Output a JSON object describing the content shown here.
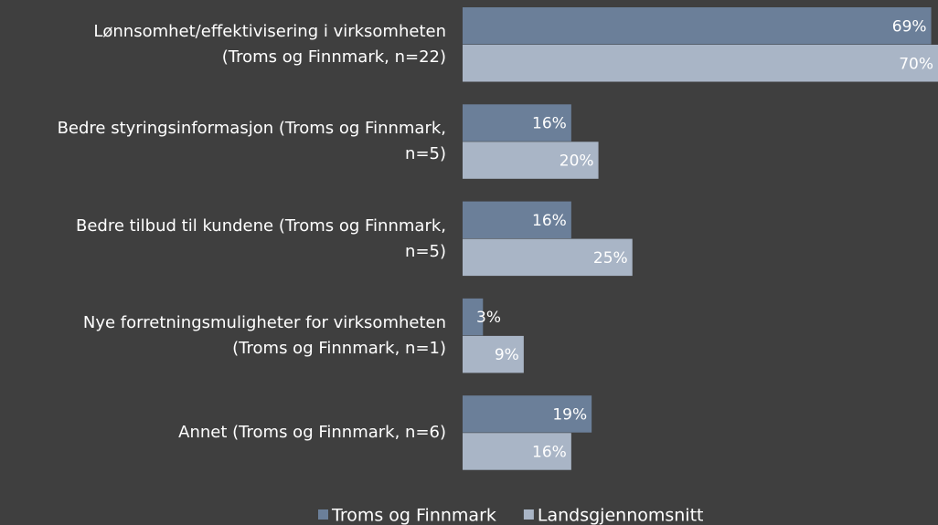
{
  "chart_data": {
    "type": "bar",
    "orientation": "horizontal",
    "categories": [
      "Lønnsomhet/effektivisering i virksomheten (Troms og Finnmark, n=22)",
      "Bedre styringsinformasjon (Troms og Finnmark, n=5)",
      "Bedre tilbud til kundene (Troms og Finnmark, n=5)",
      "Nye forretningsmuligheter for virksomheten (Troms og Finnmark, n=1)",
      "Annet (Troms og Finnmark, n=6)"
    ],
    "series": [
      {
        "name": "Troms og Finnmark",
        "color": "#6b7f99",
        "values": [
          69,
          16,
          16,
          3,
          19
        ],
        "value_labels": [
          "69%",
          "16%",
          "16%",
          "3%",
          "19%"
        ]
      },
      {
        "name": "Landsgjennomsnitt",
        "color": "#a9b5c6",
        "values": [
          70,
          20,
          25,
          9,
          16
        ],
        "value_labels": [
          "70%",
          "20%",
          "25%",
          "9%",
          "16%"
        ]
      }
    ],
    "xlim": [
      0,
      70
    ],
    "legend": "bottom"
  }
}
